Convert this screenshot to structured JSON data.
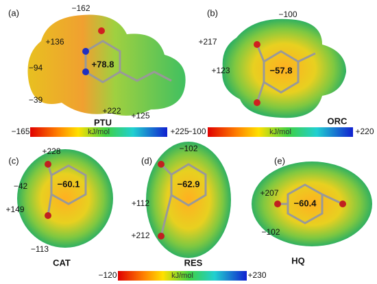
{
  "panels": [
    {
      "label": "(a)",
      "name": "PTU",
      "center": "+78.8",
      "annotations": [
        "−162",
        "+136",
        "−94",
        "−39",
        "+222",
        "+125"
      ]
    },
    {
      "label": "(b)",
      "name": "ORC",
      "center": "−57.8",
      "annotations": [
        "−100",
        "+217",
        "+123"
      ]
    },
    {
      "label": "(c)",
      "name": "CAT",
      "center": "−60.1",
      "annotations": [
        "+228",
        "−42",
        "+149",
        "−113"
      ]
    },
    {
      "label": "(d)",
      "name": "RES",
      "center": "−62.9",
      "annotations": [
        "−102",
        "+112",
        "+212"
      ]
    },
    {
      "label": "(e)",
      "name": "HQ",
      "center": "−60.4",
      "annotations": [
        "+207",
        "−102"
      ]
    }
  ],
  "colorbars": [
    {
      "min": "−165",
      "unit": "kJ/mol",
      "max": "+225"
    },
    {
      "min": "−100",
      "unit": "kJ/mol",
      "max": "+220"
    },
    {
      "min": "−120",
      "unit": "kJ/mol",
      "max": "+230"
    }
  ]
}
